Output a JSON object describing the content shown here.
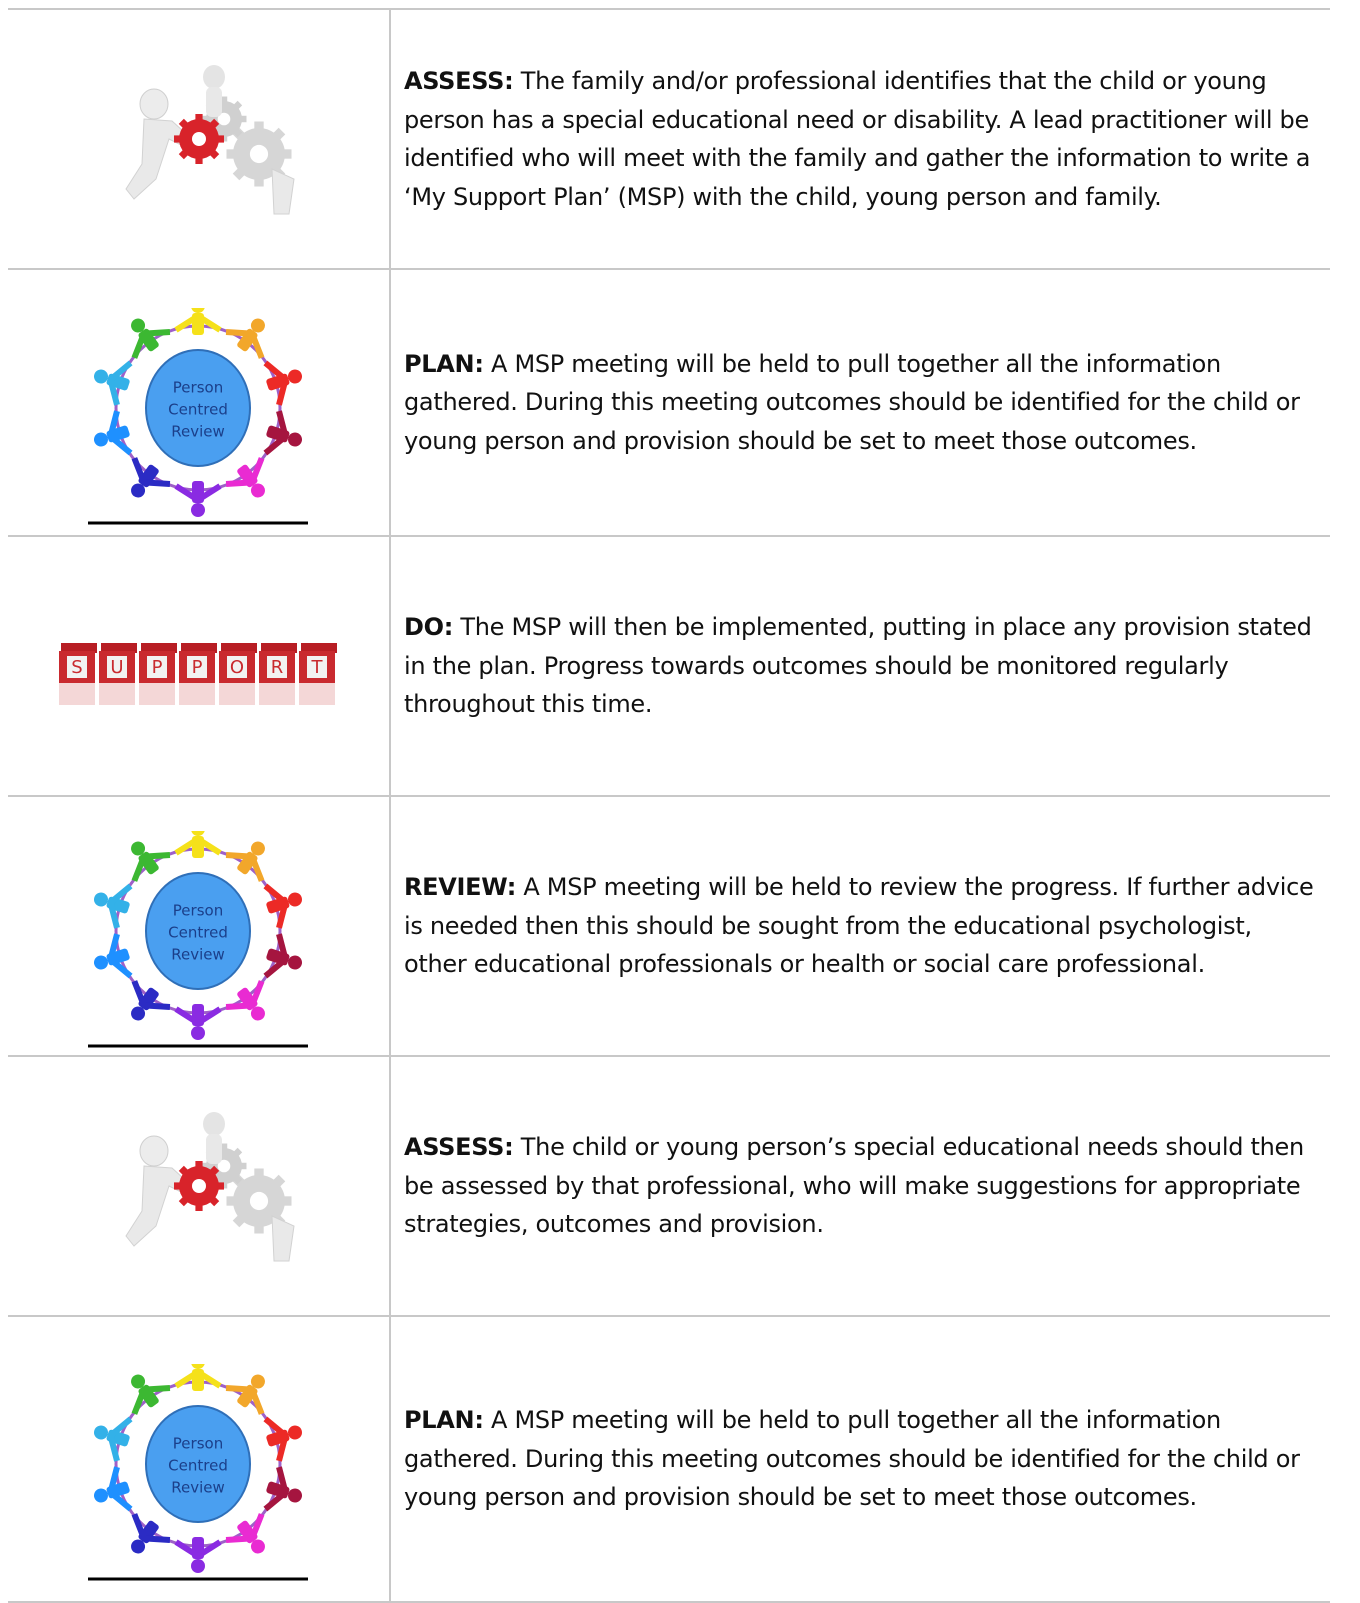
{
  "rows": [
    {
      "icon": "gears",
      "heading": "ASSESS:",
      "text": "The family and/or professional identifies that the child or young person has a special educational need or disability. A lead practitioner will be identified who will meet with the family and gather the information to write a ‘My Support Plan’ (MSP) with the child, young person and family."
    },
    {
      "icon": "circle",
      "image_text": [
        "Person",
        "Centred",
        "Review"
      ],
      "heading": "PLAN:",
      "text": "A MSP meeting will be held to pull together all the information gathered. During this meeting outcomes should be identified for the child or young person and provision should be set to meet those outcomes."
    },
    {
      "icon": "support",
      "image_text": [
        "S",
        "U",
        "P",
        "P",
        "O",
        "R",
        "T"
      ],
      "heading": "DO:",
      "text": "The MSP will then be implemented, putting in place any provision stated in the plan. Progress towards outcomes should be monitored regularly throughout this time."
    },
    {
      "icon": "circle",
      "image_text": [
        "Person",
        "Centred",
        "Review"
      ],
      "heading": "REVIEW:",
      "text": "A MSP meeting will be held to review the progress. If further advice is needed then this should be sought from the educational psychologist, other educational professionals or health or social care professional."
    },
    {
      "icon": "gears",
      "heading": "ASSESS:",
      "text": "The child or young person’s special educational needs should then be assessed by that professional, who will make suggestions for appropriate strategies, outcomes and provision."
    },
    {
      "icon": "circle",
      "image_text": [
        "Person",
        "Centred",
        "Review"
      ],
      "heading": "PLAN:",
      "text": "A MSP meeting will be held to pull together all the information gathered. During this meeting outcomes should be identified for the child or young person and provision should be set to meet those outcomes."
    }
  ]
}
